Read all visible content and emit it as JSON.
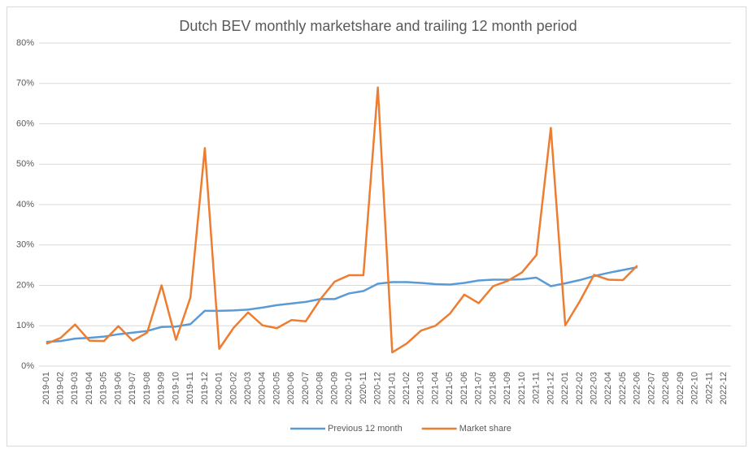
{
  "chart_data": {
    "type": "line",
    "title": "Dutch BEV monthly marketshare and  trailing 12 month period",
    "categories": [
      "2019-01",
      "2019-02",
      "2019-03",
      "2019-04",
      "2019-05",
      "2019-06",
      "2019-07",
      "2019-08",
      "2019-09",
      "2019-10",
      "2019-11",
      "2019-12",
      "2020-01",
      "2020-02",
      "2020-03",
      "2020-04",
      "2020-05",
      "2020-06",
      "2020-07",
      "2020-08",
      "2020-09",
      "2020-10",
      "2020-11",
      "2020-12",
      "2021-01",
      "2021-02",
      "2021-03",
      "2021-04",
      "2021-05",
      "2021-06",
      "2021-07",
      "2021-08",
      "2021-09",
      "2021-10",
      "2021-11",
      "2021-12",
      "2022-01",
      "2022-02",
      "2022-03",
      "2022-04",
      "2022-05",
      "2022-06",
      "2022-07",
      "2022-08",
      "2022-09",
      "2022-10",
      "2022-11",
      "2022-12"
    ],
    "series": [
      {
        "name": "Previous 12 month",
        "color": "#5b9bd5",
        "values": [
          6,
          6.2,
          6.8,
          7,
          7.3,
          7.9,
          8.3,
          8.7,
          9.7,
          9.8,
          10.4,
          13.7,
          13.7,
          13.8,
          14,
          14.5,
          15.1,
          15.5,
          15.9,
          16.6,
          16.6,
          18,
          18.6,
          20.4,
          20.8,
          20.8,
          20.6,
          20.3,
          20.2,
          20.6,
          21.2,
          21.4,
          21.4,
          21.5,
          21.9,
          19.8,
          20.5,
          21.3,
          22.3,
          23.1,
          23.8,
          24.5,
          null,
          null,
          null,
          null,
          null,
          null
        ]
      },
      {
        "name": "Market share",
        "color": "#ed7d31",
        "values": [
          5.5,
          7,
          10.3,
          6.3,
          6.2,
          9.9,
          6.3,
          8.3,
          20,
          6.5,
          17,
          54,
          4.3,
          9.5,
          13.3,
          10.1,
          9.4,
          11.4,
          11.1,
          16.5,
          20.9,
          22.5,
          22.5,
          69,
          3.4,
          5.6,
          8.8,
          10,
          13,
          17.7,
          15.6,
          19.8,
          21.1,
          23.2,
          27.5,
          59,
          10.1,
          16,
          22.6,
          21.4,
          21.3,
          24.9,
          null,
          null,
          null,
          null,
          null,
          null
        ]
      }
    ],
    "ylim": [
      0,
      80
    ],
    "yticks": [
      {
        "value": 0,
        "label": "0%"
      },
      {
        "value": 10,
        "label": "10%"
      },
      {
        "value": 20,
        "label": "20%"
      },
      {
        "value": 30,
        "label": "30%"
      },
      {
        "value": 40,
        "label": "40%"
      },
      {
        "value": 50,
        "label": "50%"
      },
      {
        "value": 60,
        "label": "60%"
      },
      {
        "value": 70,
        "label": "70%"
      },
      {
        "value": 80,
        "label": "80%"
      }
    ],
    "grid": true,
    "legend": "bottom"
  }
}
